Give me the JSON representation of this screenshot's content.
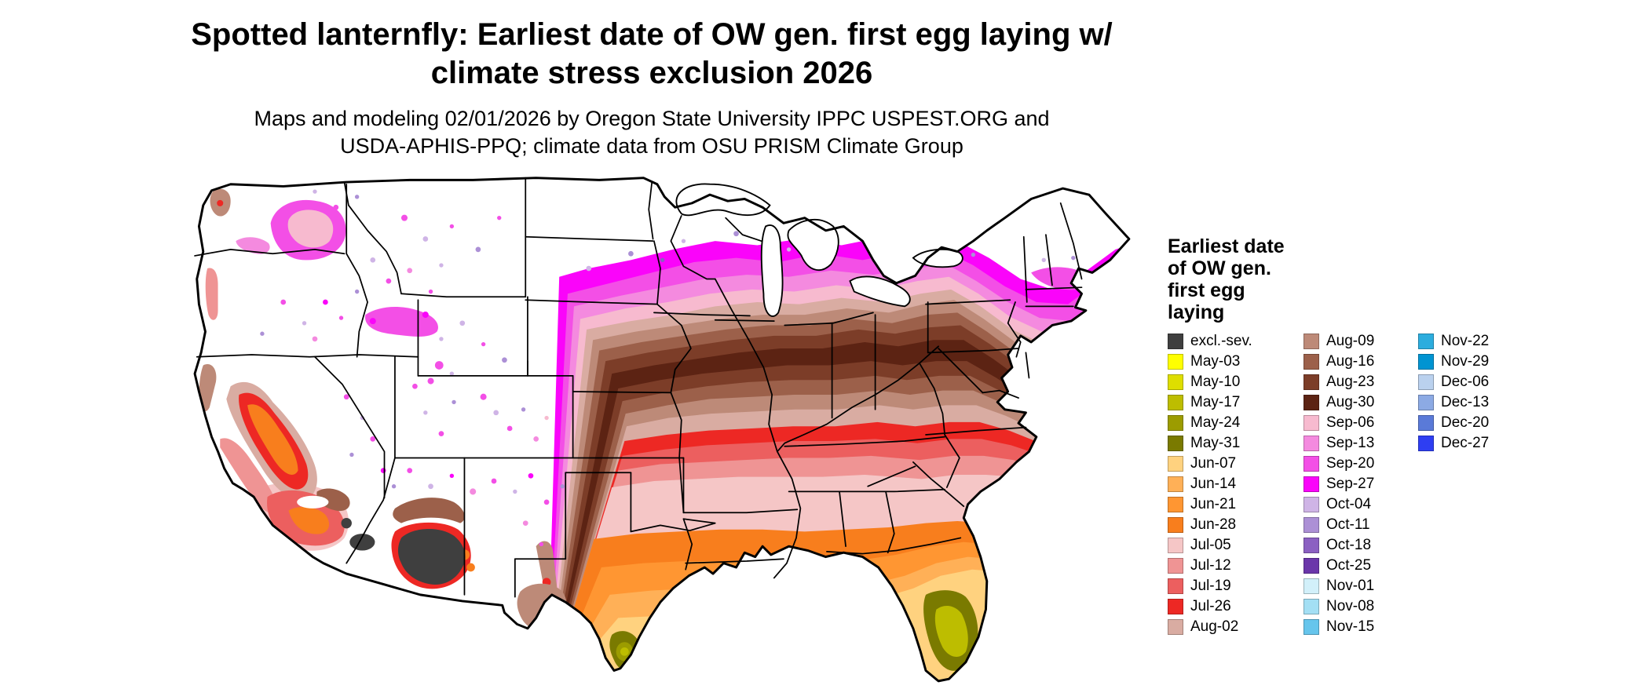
{
  "title": {
    "line1": "Spotted lanternfly: Earliest date of OW gen. first egg laying w/",
    "line2": "climate stress exclusion 2026"
  },
  "subtitle": {
    "line1": "Maps and modeling 02/01/2026 by Oregon State University IPPC USPEST.ORG and",
    "line2": "USDA-APHIS-PPQ; climate data from OSU PRISM Climate Group"
  },
  "legend": {
    "title_lines": [
      "Earliest date",
      "of OW gen.",
      "first egg",
      "laying"
    ],
    "colors": {
      "excl": "#3f3f3f",
      "may03": "#ffff00",
      "may10": "#dede00",
      "may17": "#bdbd00",
      "may24": "#9c9c00",
      "may31": "#7a7a00",
      "jun07": "#ffd27f",
      "jun14": "#ffb057",
      "jun21": "#ff9632",
      "jun28": "#f87e1d",
      "jul05": "#f5c6c6",
      "jul12": "#ef9494",
      "jul19": "#ec5f5f",
      "jul26": "#ed2824",
      "aug02": "#d9aca2",
      "aug09": "#bd8a78",
      "aug16": "#9c604a",
      "aug23": "#7c3d28",
      "aug30": "#5c2313",
      "sep06": "#f7bacf",
      "sep13": "#f48adf",
      "sep20": "#f34fe6",
      "sep27": "#fa04fa",
      "oct04": "#cfb4e6",
      "oct11": "#ac90d6",
      "oct18": "#8b60c2",
      "oct25": "#6b36aa",
      "nov01": "#d2f0fa",
      "nov08": "#a3dff4",
      "nov15": "#66c5ec",
      "nov22": "#2cadde",
      "nov29": "#0094d2",
      "dec06": "#bad1ee",
      "dec13": "#8caae4",
      "dec20": "#5a7ad8",
      "dec27": "#2e3ef2"
    },
    "columns": [
      [
        {
          "key": "excl",
          "label": "excl.-sev."
        },
        {
          "key": "may03",
          "label": "May-03"
        },
        {
          "key": "may10",
          "label": "May-10"
        },
        {
          "key": "may17",
          "label": "May-17"
        },
        {
          "key": "may24",
          "label": "May-24"
        },
        {
          "key": "may31",
          "label": "May-31"
        },
        {
          "key": "jun07",
          "label": "Jun-07"
        },
        {
          "key": "jun14",
          "label": "Jun-14"
        },
        {
          "key": "jun21",
          "label": "Jun-21"
        },
        {
          "key": "jun28",
          "label": "Jun-28"
        },
        {
          "key": "jul05",
          "label": "Jul-05"
        },
        {
          "key": "jul12",
          "label": "Jul-12"
        },
        {
          "key": "jul19",
          "label": "Jul-19"
        },
        {
          "key": "jul26",
          "label": "Jul-26"
        },
        {
          "key": "aug02",
          "label": "Aug-02"
        }
      ],
      [
        {
          "key": "aug09",
          "label": "Aug-09"
        },
        {
          "key": "aug16",
          "label": "Aug-16"
        },
        {
          "key": "aug23",
          "label": "Aug-23"
        },
        {
          "key": "aug30",
          "label": "Aug-30"
        },
        {
          "key": "sep06",
          "label": "Sep-06"
        },
        {
          "key": "sep13",
          "label": "Sep-13"
        },
        {
          "key": "sep20",
          "label": "Sep-20"
        },
        {
          "key": "sep27",
          "label": "Sep-27"
        },
        {
          "key": "oct04",
          "label": "Oct-04"
        },
        {
          "key": "oct11",
          "label": "Oct-11"
        },
        {
          "key": "oct18",
          "label": "Oct-18"
        },
        {
          "key": "oct25",
          "label": "Oct-25"
        },
        {
          "key": "nov01",
          "label": "Nov-01"
        },
        {
          "key": "nov08",
          "label": "Nov-08"
        },
        {
          "key": "nov15",
          "label": "Nov-15"
        }
      ],
      [
        {
          "key": "nov22",
          "label": "Nov-22"
        },
        {
          "key": "nov29",
          "label": "Nov-29"
        },
        {
          "key": "dec06",
          "label": "Dec-06"
        },
        {
          "key": "dec13",
          "label": "Dec-13"
        },
        {
          "key": "dec20",
          "label": "Dec-20"
        },
        {
          "key": "dec27",
          "label": "Dec-27"
        }
      ]
    ]
  },
  "map": {
    "region": "Continental United States",
    "gradient_north_to_south": [
      "oct04",
      "sep27",
      "sep20",
      "sep13",
      "sep06",
      "aug02",
      "aug09",
      "aug16",
      "aug23",
      "aug30",
      "aug23",
      "aug16",
      "aug09",
      "aug02",
      "jul26",
      "jul19",
      "jul12",
      "jul05",
      "jun28",
      "jun21",
      "jun14",
      "jun07",
      "may31",
      "may24",
      "may17",
      "may10",
      "may03"
    ],
    "excluded_label": "excl.-sev."
  }
}
